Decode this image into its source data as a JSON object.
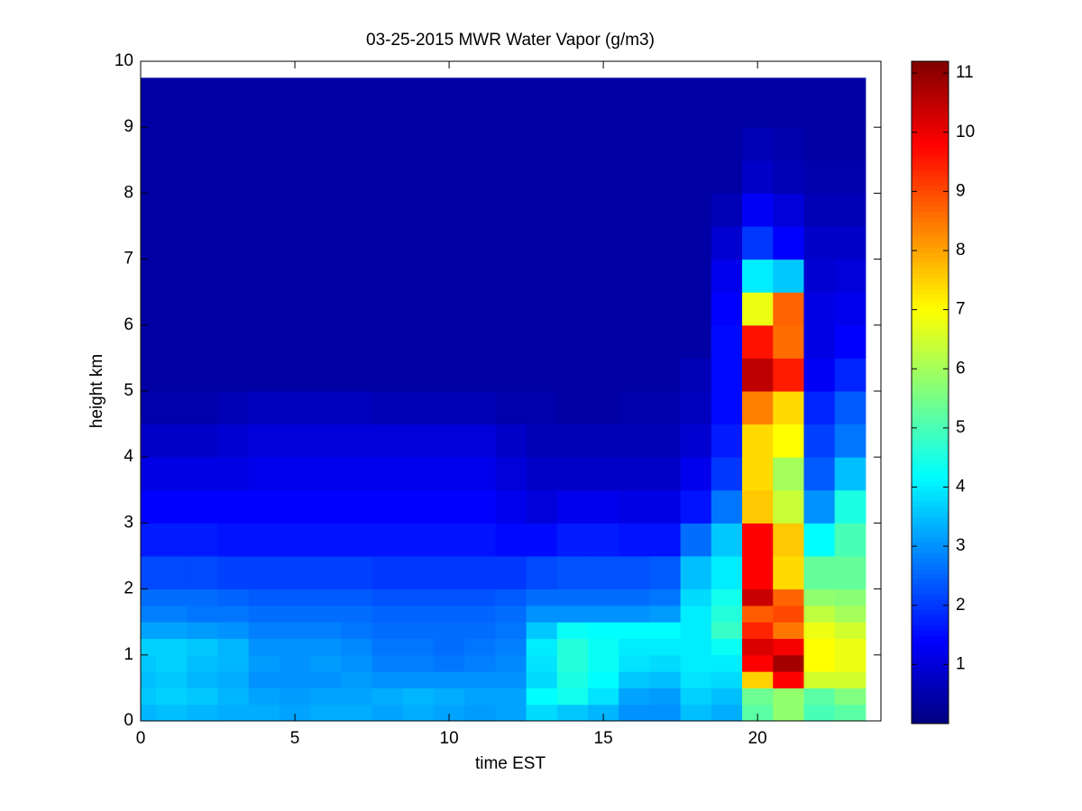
{
  "chart_data": {
    "type": "heatmap",
    "title": "03-25-2015 MWR Water Vapor (g/m3)",
    "xlabel": "time EST",
    "ylabel": "height km",
    "xlim": [
      0,
      24
    ],
    "ylim": [
      0,
      10
    ],
    "xticks": [
      0,
      5,
      10,
      15,
      20
    ],
    "yticks": [
      0,
      1,
      2,
      3,
      4,
      5,
      6,
      7,
      8,
      9,
      10
    ],
    "colormap": "jet",
    "clim": [
      0,
      11.2
    ],
    "cticks": [
      1,
      2,
      3,
      4,
      5,
      6,
      7,
      8,
      9,
      10,
      11
    ],
    "x_edges": [
      0,
      0.5,
      1.5,
      2.5,
      3.5,
      4.5,
      5.5,
      6.5,
      7.5,
      8.5,
      9.5,
      10.5,
      11.5,
      12.5,
      13.5,
      14.5,
      15.5,
      16.5,
      17.5,
      18.5,
      19.5,
      20.5,
      21.5,
      22.5,
      23.5
    ],
    "y_edges": [
      0,
      0.25,
      0.5,
      0.75,
      1,
      1.25,
      1.5,
      1.75,
      2,
      2.5,
      3,
      3.5,
      4,
      4.5,
      5,
      5.5,
      6,
      6.5,
      7,
      7.5,
      8,
      8.5,
      9,
      9.75
    ],
    "z": [
      [
        3.4,
        3.6,
        3.5,
        3.6,
        3.7,
        3.2,
        2.8,
        2.6,
        2.2,
        1.7,
        1.4,
        1.1,
        0.8,
        0.5,
        0.4,
        0.4,
        0.4,
        0.4,
        0.4,
        0.4,
        0.4,
        0.4,
        0.4
      ],
      [
        3.5,
        3.7,
        3.6,
        3.7,
        3.7,
        3.2,
        2.8,
        2.6,
        2.2,
        1.7,
        1.4,
        1.1,
        0.8,
        0.5,
        0.4,
        0.4,
        0.4,
        0.4,
        0.4,
        0.4,
        0.4,
        0.4,
        0.4
      ],
      [
        3.4,
        3.6,
        3.4,
        3.5,
        3.6,
        3.1,
        2.7,
        2.6,
        2.2,
        1.7,
        1.4,
        1.1,
        0.8,
        0.5,
        0.4,
        0.4,
        0.4,
        0.4,
        0.4,
        0.4,
        0.4,
        0.4,
        0.4
      ],
      [
        3.3,
        3.4,
        3.3,
        3.4,
        3.4,
        3.0,
        2.7,
        2.5,
        2.1,
        1.6,
        1.4,
        1.1,
        0.9,
        0.6,
        0.4,
        0.4,
        0.4,
        0.4,
        0.4,
        0.4,
        0.4,
        0.4,
        0.4
      ],
      [
        3.3,
        3.2,
        3.0,
        3.1,
        3.0,
        2.8,
        2.6,
        2.4,
        2.1,
        1.6,
        1.4,
        1.2,
        1.0,
        0.7,
        0.4,
        0.4,
        0.4,
        0.4,
        0.4,
        0.4,
        0.4,
        0.4,
        0.4
      ],
      [
        3.2,
        3.1,
        3.0,
        3.0,
        3.0,
        2.8,
        2.6,
        2.4,
        2.1,
        1.6,
        1.4,
        1.2,
        1.0,
        0.7,
        0.4,
        0.4,
        0.4,
        0.4,
        0.4,
        0.4,
        0.4,
        0.4,
        0.4
      ],
      [
        3.3,
        3.2,
        3.0,
        3.1,
        3.0,
        2.8,
        2.6,
        2.4,
        2.1,
        1.6,
        1.4,
        1.2,
        1.0,
        0.7,
        0.4,
        0.4,
        0.4,
        0.4,
        0.4,
        0.4,
        0.4,
        0.4,
        0.4
      ],
      [
        3.3,
        3.2,
        3.1,
        3.0,
        2.9,
        2.7,
        2.6,
        2.4,
        2.1,
        1.6,
        1.4,
        1.2,
        1.0,
        0.7,
        0.4,
        0.4,
        0.4,
        0.4,
        0.4,
        0.4,
        0.4,
        0.4,
        0.4
      ],
      [
        3.2,
        3.3,
        3.0,
        2.8,
        2.7,
        2.6,
        2.5,
        2.3,
        2.0,
        1.6,
        1.4,
        1.2,
        1.0,
        0.6,
        0.4,
        0.4,
        0.4,
        0.4,
        0.4,
        0.4,
        0.4,
        0.4,
        0.4
      ],
      [
        3.3,
        3.4,
        3.0,
        2.8,
        2.7,
        2.6,
        2.5,
        2.3,
        2.0,
        1.6,
        1.4,
        1.2,
        1.0,
        0.6,
        0.4,
        0.4,
        0.4,
        0.4,
        0.4,
        0.4,
        0.4,
        0.4,
        0.4
      ],
      [
        3.2,
        3.3,
        3.0,
        2.7,
        2.6,
        2.6,
        2.5,
        2.3,
        2.0,
        1.6,
        1.4,
        1.2,
        1.0,
        0.6,
        0.4,
        0.4,
        0.4,
        0.4,
        0.4,
        0.4,
        0.4,
        0.4,
        0.4
      ],
      [
        3.1,
        3.2,
        3.0,
        2.8,
        2.7,
        2.6,
        2.5,
        2.3,
        2.0,
        1.6,
        1.4,
        1.2,
        1.0,
        0.6,
        0.4,
        0.4,
        0.4,
        0.4,
        0.4,
        0.4,
        0.4,
        0.4,
        0.4
      ],
      [
        3.2,
        3.2,
        3.0,
        2.9,
        2.8,
        2.7,
        2.6,
        2.4,
        2.0,
        1.5,
        1.2,
        1.0,
        0.8,
        0.5,
        0.4,
        0.4,
        0.4,
        0.4,
        0.4,
        0.4,
        0.4,
        0.4,
        0.4
      ],
      [
        3.8,
        4.2,
        3.8,
        3.9,
        4.0,
        3.6,
        3.0,
        2.6,
        2.2,
        1.5,
        1.0,
        0.8,
        0.6,
        0.5,
        0.4,
        0.4,
        0.4,
        0.4,
        0.4,
        0.4,
        0.4,
        0.4,
        0.4
      ],
      [
        3.6,
        4.4,
        4.5,
        4.6,
        4.6,
        4.3,
        3.0,
        2.6,
        2.3,
        1.7,
        1.2,
        0.8,
        0.6,
        0.4,
        0.4,
        0.4,
        0.4,
        0.4,
        0.4,
        0.4,
        0.4,
        0.4,
        0.4
      ],
      [
        3.4,
        3.9,
        4.2,
        4.3,
        4.3,
        4.2,
        3.0,
        2.6,
        2.3,
        1.7,
        1.2,
        0.8,
        0.6,
        0.4,
        0.4,
        0.4,
        0.4,
        0.4,
        0.4,
        0.4,
        0.4,
        0.4,
        0.4
      ],
      [
        3.0,
        3.2,
        3.6,
        3.9,
        4.0,
        4.2,
        3.0,
        2.6,
        2.3,
        1.6,
        1.1,
        0.8,
        0.6,
        0.5,
        0.4,
        0.4,
        0.4,
        0.4,
        0.4,
        0.4,
        0.4,
        0.4,
        0.4
      ],
      [
        3.0,
        3.1,
        3.5,
        3.8,
        4.0,
        4.2,
        3.1,
        2.7,
        2.4,
        1.6,
        1.1,
        0.8,
        0.6,
        0.5,
        0.4,
        0.4,
        0.4,
        0.4,
        0.4,
        0.4,
        0.4,
        0.4,
        0.4
      ],
      [
        3.5,
        3.7,
        3.9,
        4.0,
        4.0,
        4.0,
        4.0,
        3.8,
        3.5,
        2.6,
        1.6,
        1.2,
        0.9,
        0.7,
        0.6,
        0.4,
        0.4,
        0.4,
        0.4,
        0.4,
        0.4,
        0.4,
        0.4
      ],
      [
        3.3,
        3.5,
        3.8,
        4.0,
        4.3,
        4.8,
        4.6,
        4.4,
        4.0,
        3.6,
        2.7,
        2.0,
        1.7,
        1.5,
        1.5,
        1.5,
        1.4,
        1.2,
        0.9,
        0.6,
        0.4,
        0.4,
        0.4
      ],
      [
        5.2,
        5.4,
        7.5,
        9.8,
        10.2,
        9.4,
        8.8,
        10.4,
        9.8,
        9.8,
        7.6,
        7.4,
        7.4,
        8.4,
        10.5,
        9.6,
        6.8,
        4.0,
        2.0,
        1.3,
        0.8,
        0.6,
        0.4
      ],
      [
        5.8,
        5.8,
        9.8,
        10.8,
        9.9,
        8.5,
        9.0,
        8.7,
        7.4,
        7.6,
        6.4,
        6.0,
        7.0,
        7.4,
        9.5,
        8.6,
        8.7,
        3.6,
        1.4,
        1.0,
        0.6,
        0.5,
        0.4
      ],
      [
        5.0,
        5.2,
        6.5,
        7.0,
        7.0,
        6.8,
        6.3,
        5.8,
        5.3,
        4.2,
        3.0,
        2.4,
        2.1,
        1.8,
        1.3,
        1.1,
        1.1,
        0.9,
        0.8,
        0.6,
        0.5,
        0.4,
        0.4
      ],
      [
        5.2,
        5.6,
        6.5,
        6.8,
        6.8,
        6.5,
        6.0,
        5.7,
        5.3,
        5.0,
        4.5,
        3.5,
        2.7,
        2.4,
        1.8,
        1.4,
        1.2,
        1.0,
        0.8,
        0.6,
        0.5,
        0.4,
        0.4
      ]
    ]
  }
}
